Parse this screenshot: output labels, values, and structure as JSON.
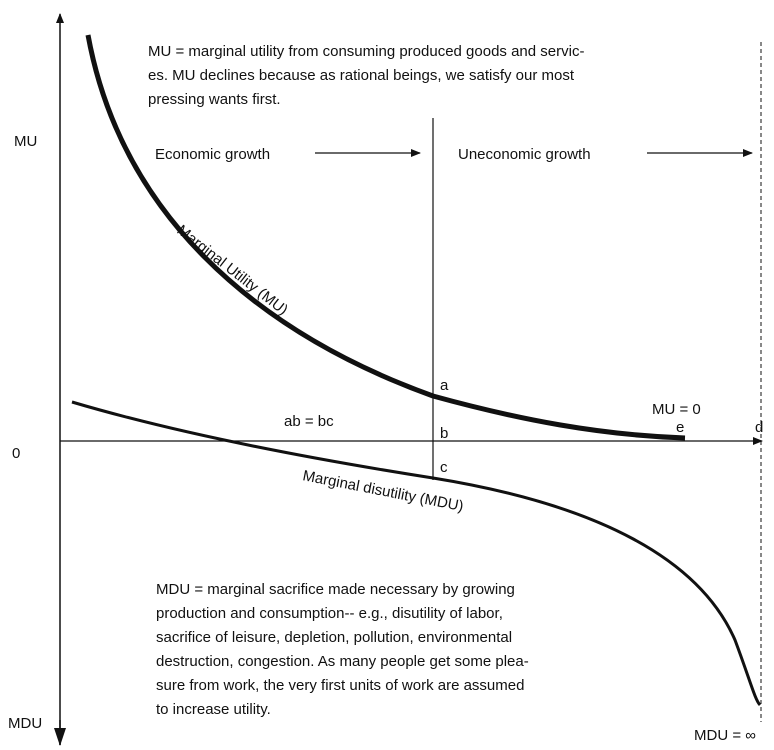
{
  "axis": {
    "top_label": "MU",
    "origin_label": "0",
    "bottom_label": "MDU"
  },
  "top_note": [
    "MU = marginal utility from consuming produced goods and servic-",
    "es. MU declines because as rational beings, we satisfy our most",
    "pressing wants first."
  ],
  "regions": {
    "left": "Economic growth",
    "right": "Uneconomic growth"
  },
  "curves": {
    "mu": "Marginal Utility (MU)",
    "mdu": "Marginal disutility (MDU)"
  },
  "points": {
    "a": "a",
    "b": "b",
    "c": "c",
    "d": "d",
    "e": "e"
  },
  "equality": "ab = bc",
  "mu_zero": "MU = 0",
  "bottom_note": [
    "MDU = marginal sacrifice made necessary by growing",
    "production and consumption-- e.g., disutility of labor,",
    "sacrifice of leisure, depletion, pollution, environmental",
    "destruction, congestion.  As many people get some plea-",
    "sure from work, the very first units of work are assumed",
    "to increase utility."
  ],
  "mdu_infinite": "MDU = ∞"
}
